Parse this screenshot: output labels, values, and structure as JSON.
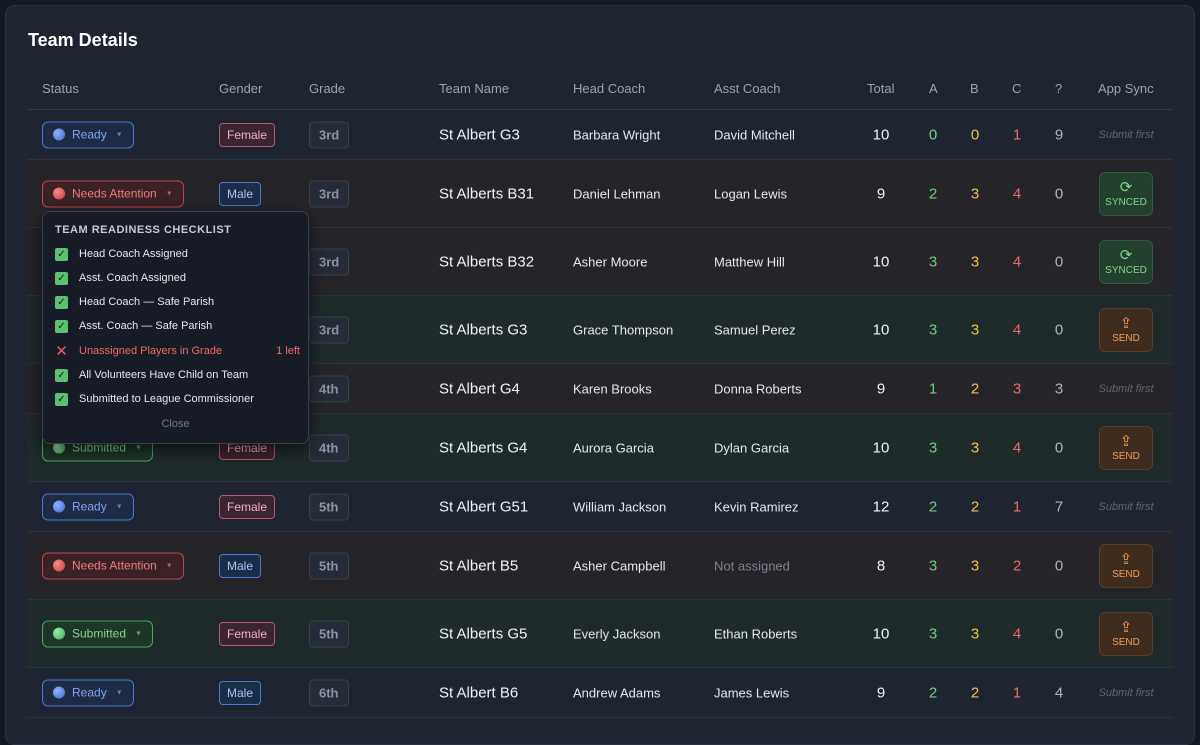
{
  "title": "Team Details",
  "columns": [
    "Status",
    "Gender",
    "Grade",
    "Team Name",
    "Head Coach",
    "Asst Coach",
    "Total",
    "A",
    "B",
    "C",
    "?",
    "App Sync"
  ],
  "rows": [
    {
      "status": "Ready",
      "gender": "Female",
      "grade": "3rd",
      "team": "St Albert G3",
      "head": "Barbara Wright",
      "asst": "David Mitchell",
      "total": "10",
      "a": "0",
      "b": "0",
      "c": "1",
      "q": "9",
      "sync": "Submit first"
    },
    {
      "status": "Needs Attention",
      "gender": "Male",
      "grade": "3rd",
      "team": "St Alberts B31",
      "head": "Daniel Lehman",
      "asst": "Logan Lewis",
      "total": "9",
      "a": "2",
      "b": "3",
      "c": "4",
      "q": "0",
      "sync": "SYNCED"
    },
    {
      "status": "",
      "gender": "",
      "grade": "3rd",
      "team": "St Alberts B32",
      "head": "Asher Moore",
      "asst": "Matthew Hill",
      "total": "10",
      "a": "3",
      "b": "3",
      "c": "4",
      "q": "0",
      "sync": "SYNCED"
    },
    {
      "status": "",
      "gender": "",
      "grade": "3rd",
      "team": "St Alberts G3",
      "head": "Grace Thompson",
      "asst": "Samuel Perez",
      "total": "10",
      "a": "3",
      "b": "3",
      "c": "4",
      "q": "0",
      "sync": "SEND"
    },
    {
      "status": "",
      "gender": "",
      "grade": "4th",
      "team": "St Albert G4",
      "head": "Karen Brooks",
      "asst": "Donna Roberts",
      "total": "9",
      "a": "1",
      "b": "2",
      "c": "3",
      "q": "3",
      "sync": "Submit first"
    },
    {
      "status": "Submitted",
      "gender": "Female",
      "grade": "4th",
      "team": "St Alberts G4",
      "head": "Aurora Garcia",
      "asst": "Dylan Garcia",
      "total": "10",
      "a": "3",
      "b": "3",
      "c": "4",
      "q": "0",
      "sync": "SEND"
    },
    {
      "status": "Ready",
      "gender": "Female",
      "grade": "5th",
      "team": "St Albert G51",
      "head": "William Jackson",
      "asst": "Kevin Ramirez",
      "total": "12",
      "a": "2",
      "b": "2",
      "c": "1",
      "q": "7",
      "sync": "Submit first"
    },
    {
      "status": "Needs Attention",
      "gender": "Male",
      "grade": "5th",
      "team": "St Albert B5",
      "head": "Asher Campbell",
      "asst": "Not assigned",
      "total": "8",
      "a": "3",
      "b": "3",
      "c": "2",
      "q": "0",
      "sync": "SEND"
    },
    {
      "status": "Submitted",
      "gender": "Female",
      "grade": "5th",
      "team": "St Alberts G5",
      "head": "Everly Jackson",
      "asst": "Ethan Roberts",
      "total": "10",
      "a": "3",
      "b": "3",
      "c": "4",
      "q": "0",
      "sync": "SEND"
    },
    {
      "status": "Ready",
      "gender": "Male",
      "grade": "6th",
      "team": "St Albert B6",
      "head": "Andrew Adams",
      "asst": "James Lewis",
      "total": "9",
      "a": "2",
      "b": "2",
      "c": "1",
      "q": "4",
      "sync": "Submit first"
    }
  ],
  "checklist": {
    "title": "TEAM READINESS CHECKLIST",
    "items": [
      {
        "label": "Head Coach Assigned",
        "ok": true,
        "note": ""
      },
      {
        "label": "Asst. Coach Assigned",
        "ok": true,
        "note": ""
      },
      {
        "label": "Head Coach — Safe Parish",
        "ok": true,
        "note": ""
      },
      {
        "label": "Asst. Coach — Safe Parish",
        "ok": true,
        "note": ""
      },
      {
        "label": "Unassigned Players in Grade",
        "ok": false,
        "note": "1 left"
      },
      {
        "label": "All Volunteers Have Child on Team",
        "ok": true,
        "note": ""
      },
      {
        "label": "Submitted to League Commissioner",
        "ok": true,
        "note": ""
      }
    ],
    "close": "Close"
  },
  "colors": {
    "ready": "#4a78d6",
    "attention": "#c0484c",
    "submitted": "#4aa862",
    "send": "#f2a04e",
    "synced": "#7cd991"
  }
}
